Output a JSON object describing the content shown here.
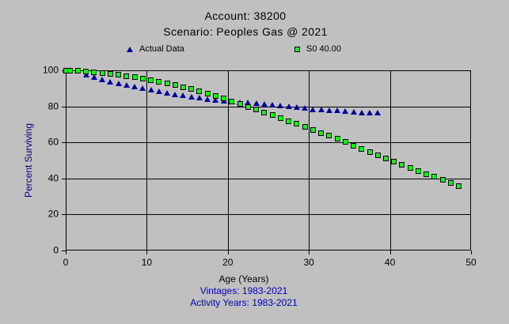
{
  "header": {
    "account": "Account: 38200",
    "scenario": "Scenario: Peoples Gas @ 2021"
  },
  "footer": {
    "age_axis_label": "Age (Years)",
    "vintages_label": "Vintages: 1983-2021",
    "activity_years_label": "Activity Years: 1983-2021"
  },
  "colors": {
    "background": "#c0c0c0",
    "grid": "#000000",
    "title_text": "#000000",
    "y_axis_title_text": "#000080",
    "footer_blue_text": "#0000c0",
    "actual_marker": "#0000a0",
    "fitted_marker": "#00ff00"
  },
  "chart_data": {
    "type": "scatter",
    "title": "Account: 38200 / Scenario: Peoples Gas @ 2021",
    "xlabel": "Age (Years)",
    "ylabel": "Percent Surviving",
    "xlim": [
      0,
      50
    ],
    "ylim": [
      0,
      100
    ],
    "x_ticks": [
      0,
      10,
      20,
      30,
      40,
      50
    ],
    "y_ticks": [
      0,
      20,
      40,
      60,
      80,
      100
    ],
    "grid": true,
    "legend_position": "top",
    "series": [
      {
        "name": "Actual Data",
        "marker": "triangle",
        "color": "#0000a0",
        "points": [
          [
            0,
            100
          ],
          [
            0.5,
            100
          ],
          [
            1.5,
            99.4
          ],
          [
            2.5,
            97.2
          ],
          [
            3.5,
            96.0
          ],
          [
            4.5,
            94.9
          ],
          [
            5.5,
            93.6
          ],
          [
            6.5,
            92.5
          ],
          [
            7.5,
            91.6
          ],
          [
            8.5,
            90.7
          ],
          [
            9.5,
            89.8
          ],
          [
            10.5,
            89.0
          ],
          [
            11.5,
            88.2
          ],
          [
            12.5,
            87.4
          ],
          [
            13.5,
            86.6
          ],
          [
            14.5,
            85.9
          ],
          [
            15.5,
            85.2
          ],
          [
            16.5,
            84.5
          ],
          [
            17.5,
            83.8
          ],
          [
            18.5,
            83.2
          ],
          [
            19.5,
            82.7
          ],
          [
            20.5,
            82.4
          ],
          [
            21.5,
            82.1
          ],
          [
            22.5,
            81.8
          ],
          [
            23.5,
            81.5
          ],
          [
            24.5,
            81.1
          ],
          [
            25.5,
            80.8
          ],
          [
            26.5,
            80.4
          ],
          [
            27.5,
            80.0
          ],
          [
            28.5,
            79.6
          ],
          [
            29.5,
            79.1
          ],
          [
            30.5,
            78.2
          ],
          [
            31.5,
            78.0
          ],
          [
            32.5,
            77.7
          ],
          [
            33.5,
            77.5
          ],
          [
            34.5,
            77.2
          ],
          [
            35.5,
            76.8
          ],
          [
            36.5,
            76.5
          ],
          [
            37.5,
            76.3
          ],
          [
            38.5,
            76.1
          ]
        ]
      },
      {
        "name": "S0 40.00",
        "marker": "square",
        "color": "#00ff00",
        "points": [
          [
            0,
            100
          ],
          [
            0.5,
            100
          ],
          [
            1.5,
            99.6
          ],
          [
            2.5,
            99.3
          ],
          [
            3.5,
            99.0
          ],
          [
            4.5,
            98.6
          ],
          [
            5.5,
            98.1
          ],
          [
            6.5,
            97.5
          ],
          [
            7.5,
            96.9
          ],
          [
            8.5,
            96.2
          ],
          [
            9.5,
            95.5
          ],
          [
            10.5,
            94.7
          ],
          [
            11.5,
            93.8
          ],
          [
            12.5,
            92.8
          ],
          [
            13.5,
            91.8
          ],
          [
            14.5,
            90.7
          ],
          [
            15.5,
            89.5
          ],
          [
            16.5,
            88.3
          ],
          [
            17.5,
            87.0
          ],
          [
            18.5,
            85.7
          ],
          [
            19.5,
            84.3
          ],
          [
            20.5,
            82.8
          ],
          [
            21.5,
            81.2
          ],
          [
            22.5,
            79.6
          ],
          [
            23.5,
            78.1
          ],
          [
            24.5,
            76.6
          ],
          [
            25.5,
            75.1
          ],
          [
            26.5,
            73.5
          ],
          [
            27.5,
            71.9
          ],
          [
            28.5,
            70.3
          ],
          [
            29.5,
            68.7
          ],
          [
            30.5,
            67.0
          ],
          [
            31.5,
            65.3
          ],
          [
            32.5,
            63.6
          ],
          [
            33.5,
            61.9
          ],
          [
            34.5,
            60.1
          ],
          [
            35.5,
            58.3
          ],
          [
            36.5,
            56.5
          ],
          [
            37.5,
            54.8
          ],
          [
            38.5,
            53.0
          ],
          [
            39.5,
            51.2
          ],
          [
            40.5,
            49.4
          ],
          [
            41.5,
            47.7
          ],
          [
            42.5,
            45.9
          ],
          [
            43.5,
            44.2
          ],
          [
            44.5,
            42.5
          ],
          [
            45.5,
            40.8
          ],
          [
            46.5,
            39.1
          ],
          [
            47.5,
            37.4
          ],
          [
            48.5,
            35.7
          ]
        ]
      }
    ]
  }
}
